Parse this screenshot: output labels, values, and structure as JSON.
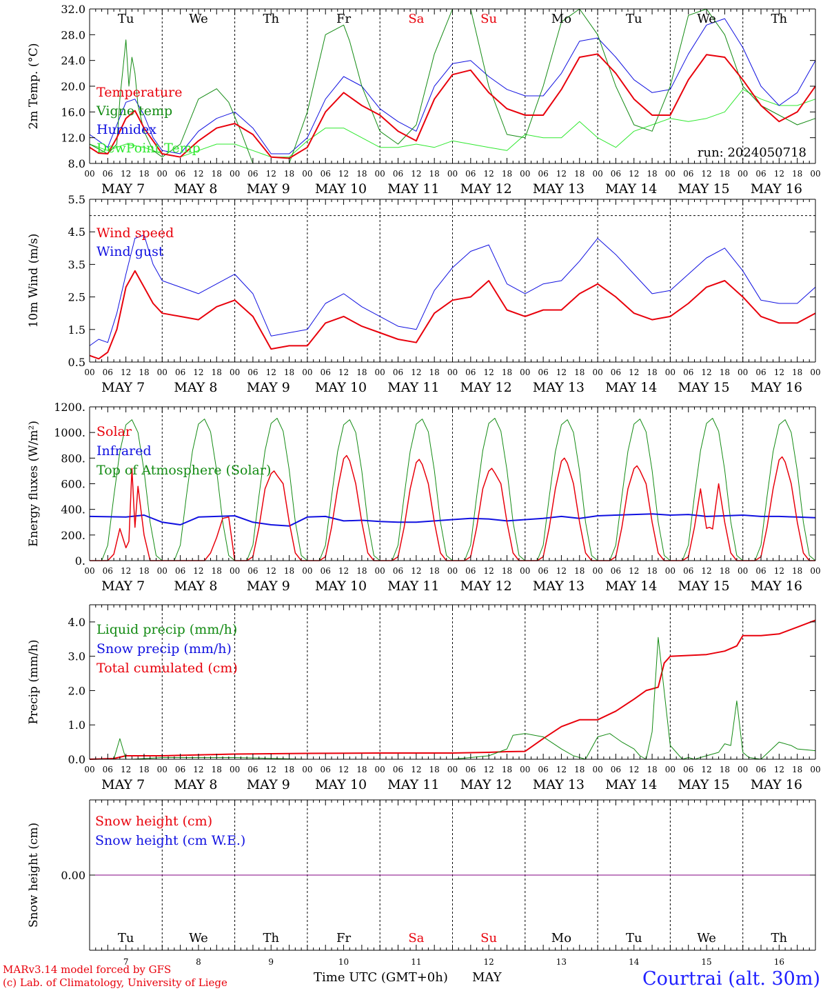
{
  "colors": {
    "red": "#e8000b",
    "green": "#128a12",
    "blue": "#1010e0",
    "lightgreen": "#2ee82e",
    "purple": "#800080",
    "title_blue": "#2020ff"
  },
  "time_axis": {
    "hour_ticks": [
      "00",
      "06",
      "12",
      "18"
    ],
    "last_tick": "00",
    "dates": [
      "MAY  7",
      "MAY  8",
      "MAY  9",
      "MAY 10",
      "MAY 11",
      "MAY 12",
      "MAY 13",
      "MAY 14",
      "MAY 15",
      "MAY 16"
    ],
    "weekdays": [
      {
        "label": "Tu",
        "weekend": false
      },
      {
        "label": "We",
        "weekend": false
      },
      {
        "label": "Th",
        "weekend": false
      },
      {
        "label": "Fr",
        "weekend": false
      },
      {
        "label": "Sa",
        "weekend": true
      },
      {
        "label": "Su",
        "weekend": true
      },
      {
        "label": "Mo",
        "weekend": false
      },
      {
        "label": "Tu",
        "weekend": false
      },
      {
        "label": "We",
        "weekend": false
      },
      {
        "label": "Th",
        "weekend": false
      }
    ],
    "day_numbers": [
      "7",
      "8",
      "9",
      "10",
      "11",
      "12",
      "13",
      "14",
      "15",
      "16"
    ],
    "bottom_label": "Time UTC (GMT+0h)",
    "month": "MAY"
  },
  "footer": {
    "line1": "MARv3.14 model forced by GFS",
    "line2": "(c) Lab. of Climatology, University of Liege",
    "station": "Courtrai (alt. 30m)"
  },
  "chart_data": [
    {
      "id": "temp",
      "type": "line",
      "ylabel": "2m Temp. (°C)",
      "ylim": [
        8,
        32
      ],
      "yticks": [
        "8.0",
        "12.0",
        "16.0",
        "20.0",
        "24.0",
        "28.0",
        "32.0"
      ],
      "run_label": "run: 2024050718",
      "series": [
        {
          "name": "Temperature",
          "color": "red",
          "width": 2,
          "x": [
            0,
            3,
            6,
            9,
            12,
            15,
            18,
            21,
            24,
            30,
            36,
            42,
            48,
            54,
            60,
            66,
            72,
            78,
            84,
            90,
            96,
            102,
            108,
            114,
            120,
            126,
            132,
            138,
            144,
            150,
            156,
            162,
            168,
            174,
            180,
            186,
            192,
            198,
            204,
            210,
            216,
            222,
            228,
            234,
            240
          ],
          "y": [
            10.5,
            9.6,
            9.5,
            12.0,
            15.0,
            16.2,
            13.5,
            11.5,
            9.5,
            9.0,
            11.5,
            13.5,
            14.2,
            12.5,
            9.0,
            8.8,
            10.5,
            16.0,
            19.0,
            17.0,
            15.5,
            13.0,
            11.5,
            18.0,
            21.8,
            22.5,
            19.0,
            16.5,
            15.5,
            15.5,
            19.5,
            24.5,
            25.0,
            22.0,
            18.0,
            15.5,
            15.5,
            21.0,
            24.9,
            24.5,
            21.0,
            17.0,
            14.5,
            16.0,
            20.0
          ]
        },
        {
          "name": "Vigne temp",
          "color": "green",
          "width": 1,
          "x": [
            0,
            6,
            9,
            10,
            12,
            13,
            14,
            15,
            16,
            18,
            21,
            24,
            30,
            36,
            42,
            46,
            50,
            54,
            60,
            66,
            72,
            78,
            84,
            86,
            90,
            96,
            102,
            108,
            114,
            120,
            126,
            132,
            138,
            144,
            150,
            156,
            162,
            168,
            174,
            180,
            186,
            192,
            198,
            204,
            210,
            216,
            222,
            228,
            234,
            240
          ],
          "y": [
            11.0,
            9.5,
            11.0,
            18.0,
            27.2,
            20.0,
            24.5,
            22.0,
            17.0,
            13.0,
            10.0,
            9.0,
            11.0,
            18.0,
            19.6,
            17.5,
            13.0,
            8.0,
            7.5,
            8.0,
            16.0,
            28.0,
            29.5,
            27.0,
            20.0,
            13.0,
            11.0,
            14.0,
            25.0,
            32.0,
            32.0,
            20.0,
            12.5,
            12.0,
            20.0,
            30.0,
            32.0,
            28.0,
            20.0,
            14.0,
            13.0,
            20.0,
            31.0,
            32.0,
            28.0,
            20.0,
            17.0,
            15.5,
            14.0,
            15.0
          ]
        },
        {
          "name": "Humidex",
          "color": "blue",
          "width": 1,
          "x": [
            0,
            6,
            9,
            12,
            15,
            18,
            21,
            24,
            30,
            36,
            42,
            48,
            54,
            60,
            66,
            72,
            78,
            84,
            90,
            96,
            102,
            108,
            114,
            120,
            126,
            132,
            138,
            144,
            150,
            156,
            162,
            168,
            174,
            180,
            186,
            192,
            198,
            204,
            210,
            216,
            222,
            228,
            234,
            240
          ],
          "y": [
            12.5,
            10.5,
            14.0,
            17.5,
            18.0,
            15.5,
            12.0,
            10.0,
            9.5,
            13.0,
            15.0,
            16.0,
            13.5,
            9.5,
            9.5,
            12.0,
            18.0,
            21.5,
            20.0,
            16.5,
            14.5,
            13.0,
            20.0,
            23.5,
            24.0,
            21.5,
            19.5,
            18.5,
            18.5,
            22.0,
            27.0,
            27.5,
            24.5,
            21.0,
            19.0,
            19.5,
            25.0,
            29.5,
            30.5,
            26.0,
            20.0,
            17.0,
            19.0,
            24.0
          ]
        },
        {
          "name": "DewPoint Temp",
          "color": "lightgreen",
          "width": 1,
          "x": [
            0,
            6,
            12,
            18,
            24,
            30,
            36,
            42,
            48,
            54,
            60,
            66,
            72,
            78,
            84,
            90,
            96,
            102,
            108,
            114,
            120,
            126,
            132,
            138,
            144,
            150,
            156,
            162,
            168,
            174,
            180,
            186,
            192,
            198,
            204,
            210,
            216,
            222,
            228,
            234,
            240
          ],
          "y": [
            11.0,
            10.0,
            11.0,
            10.5,
            9.5,
            9.0,
            10.0,
            11.0,
            11.0,
            10.0,
            9.0,
            9.0,
            11.5,
            13.5,
            13.5,
            12.0,
            10.5,
            10.5,
            11.0,
            10.5,
            11.5,
            11.0,
            10.5,
            10.0,
            12.5,
            12.0,
            12.0,
            14.5,
            12.0,
            10.5,
            13.0,
            14.0,
            15.0,
            14.5,
            15.0,
            16.0,
            19.5,
            18.0,
            17.0,
            17.0,
            18.0
          ]
        }
      ]
    },
    {
      "id": "wind",
      "type": "line",
      "ylabel": "10m Wind (m/s)",
      "ylim": [
        0.5,
        5.5
      ],
      "yticks": [
        "0.5",
        "1.5",
        "2.5",
        "3.5",
        "4.5",
        "5.5"
      ],
      "ref_line": 5.0,
      "series": [
        {
          "name": "Wind speed",
          "color": "red",
          "width": 2,
          "x": [
            0,
            3,
            6,
            9,
            12,
            15,
            18,
            21,
            24,
            30,
            36,
            42,
            48,
            54,
            60,
            66,
            72,
            78,
            84,
            90,
            96,
            102,
            108,
            114,
            120,
            126,
            132,
            138,
            144,
            150,
            156,
            162,
            168,
            174,
            180,
            186,
            192,
            198,
            204,
            210,
            216,
            222,
            228,
            234,
            240
          ],
          "y": [
            0.7,
            0.6,
            0.8,
            1.5,
            2.8,
            3.3,
            2.8,
            2.3,
            2.0,
            1.9,
            1.8,
            2.2,
            2.4,
            1.9,
            0.9,
            1.0,
            1.0,
            1.7,
            1.9,
            1.6,
            1.4,
            1.2,
            1.1,
            2.0,
            2.4,
            2.5,
            3.0,
            2.1,
            1.9,
            2.1,
            2.1,
            2.6,
            2.9,
            2.5,
            2.0,
            1.8,
            1.9,
            2.3,
            2.8,
            3.0,
            2.5,
            1.9,
            1.7,
            1.7,
            2.0
          ]
        },
        {
          "name": "Wind gust",
          "color": "blue",
          "width": 1,
          "x": [
            0,
            3,
            6,
            9,
            12,
            15,
            18,
            21,
            24,
            30,
            36,
            42,
            48,
            54,
            60,
            66,
            72,
            78,
            84,
            90,
            96,
            102,
            108,
            114,
            120,
            126,
            132,
            138,
            144,
            150,
            156,
            162,
            168,
            174,
            180,
            186,
            192,
            198,
            204,
            210,
            216,
            222,
            228,
            234,
            240
          ],
          "y": [
            1.0,
            1.2,
            1.1,
            2.0,
            3.2,
            4.3,
            4.4,
            3.5,
            3.0,
            2.8,
            2.6,
            2.9,
            3.2,
            2.6,
            1.3,
            1.4,
            1.5,
            2.3,
            2.6,
            2.2,
            1.9,
            1.6,
            1.5,
            2.7,
            3.4,
            3.9,
            4.1,
            2.9,
            2.6,
            2.9,
            3.0,
            3.6,
            4.3,
            3.8,
            3.2,
            2.6,
            2.7,
            3.2,
            3.7,
            4.0,
            3.3,
            2.4,
            2.3,
            2.3,
            2.8
          ]
        }
      ]
    },
    {
      "id": "energy",
      "type": "line",
      "ylabel": "Energy fluxes (W/m²)",
      "ylim": [
        0,
        1200
      ],
      "yticks": [
        "0.",
        "200.",
        "400.",
        "600.",
        "800.",
        "1000.",
        "1200."
      ],
      "series": [
        {
          "name": "Solar",
          "color": "red",
          "width": 1.5,
          "x": [
            0,
            4,
            6,
            8,
            10,
            12,
            13,
            14,
            15,
            16,
            18,
            20,
            24,
            28,
            30,
            32,
            34,
            36,
            38,
            40,
            42,
            44,
            46,
            48,
            52,
            54,
            56
          ],
          "y": [
            0,
            0,
            0,
            50,
            250,
            100,
            150,
            720,
            260,
            580,
            200,
            0,
            0,
            0,
            0,
            0,
            0,
            0,
            0,
            60,
            180,
            330,
            340,
            300,
            120,
            10,
            0
          ]
        },
        {
          "name": "Infrared",
          "color": "blue",
          "width": 2,
          "x": [
            0,
            12,
            18,
            24,
            30,
            36,
            42,
            48,
            54,
            60,
            66,
            72,
            78,
            84,
            90,
            96,
            102,
            108,
            114,
            120,
            126,
            132,
            138,
            144,
            150,
            156,
            162,
            168,
            174,
            180,
            186,
            192,
            198,
            204,
            210,
            216,
            222,
            228,
            234,
            240
          ],
          "y": [
            345,
            340,
            355,
            300,
            280,
            340,
            345,
            350,
            300,
            280,
            270,
            340,
            345,
            310,
            315,
            305,
            300,
            300,
            310,
            320,
            330,
            325,
            310,
            320,
            330,
            345,
            330,
            350,
            355,
            360,
            365,
            355,
            360,
            345,
            350,
            355,
            345,
            345,
            340,
            335
          ]
        },
        {
          "name": "Top of Atmosphere (Solar)",
          "color": "green",
          "width": 1,
          "x": [
            0,
            4,
            6,
            8,
            10,
            12,
            14,
            16,
            18,
            20,
            22,
            24
          ],
          "y": [
            0,
            0,
            120,
            500,
            850,
            1060,
            1100,
            1000,
            700,
            300,
            40,
            0
          ]
        }
      ]
    },
    {
      "id": "precip",
      "type": "line",
      "ylabel": "Precip (mm/h)",
      "ylim": [
        0,
        4.5
      ],
      "yticks": [
        "0.0",
        "1.0",
        "2.0",
        "3.0",
        "4.0"
      ],
      "series": [
        {
          "name": "Liquid precip (mm/h)",
          "color": "green",
          "width": 1,
          "x": [
            0,
            8,
            10,
            12,
            14,
            24,
            48,
            72,
            96,
            120,
            132,
            138,
            140,
            144,
            150,
            156,
            160,
            164,
            168,
            172,
            176,
            180,
            182,
            184,
            186,
            188,
            192,
            196,
            198,
            200,
            204,
            208,
            210,
            212,
            214,
            216,
            218,
            222,
            228,
            232,
            234,
            240
          ],
          "y": [
            0,
            0,
            0.6,
            0,
            0,
            0.05,
            0.05,
            0,
            0,
            0,
            0.1,
            0.3,
            0.7,
            0.75,
            0.65,
            0.3,
            0.1,
            0,
            0.65,
            0.75,
            0.5,
            0.3,
            0.1,
            0,
            0.8,
            3.55,
            0.4,
            0,
            0.05,
            0,
            0.1,
            0.2,
            0.45,
            0.4,
            1.7,
            0.2,
            0.05,
            0,
            0.5,
            0.4,
            0.3,
            0.25
          ]
        },
        {
          "name": "Snow precip (mm/h)",
          "color": "blue",
          "width": 1,
          "x": [
            0,
            240
          ],
          "y": [
            0,
            0
          ]
        },
        {
          "name": "Total cumulated (cm)",
          "color": "red",
          "width": 2,
          "x": [
            0,
            8,
            12,
            24,
            48,
            72,
            96,
            120,
            132,
            138,
            144,
            150,
            156,
            162,
            168,
            174,
            180,
            184,
            186,
            188,
            190,
            192,
            204,
            210,
            214,
            216,
            222,
            228,
            234,
            240
          ],
          "y": [
            0,
            0.02,
            0.1,
            0.1,
            0.15,
            0.17,
            0.18,
            0.18,
            0.2,
            0.22,
            0.23,
            0.6,
            0.95,
            1.15,
            1.15,
            1.4,
            1.75,
            2.0,
            2.05,
            2.1,
            2.8,
            3.0,
            3.05,
            3.15,
            3.3,
            3.6,
            3.6,
            3.65,
            3.85,
            4.05
          ]
        }
      ]
    },
    {
      "id": "snow",
      "type": "line",
      "ylabel": "Snow height (cm)",
      "ylim": [
        -1,
        1
      ],
      "yticks": [
        "0.00"
      ],
      "series": [
        {
          "name": "Snow height (cm)",
          "color": "red",
          "width": 1,
          "x": [
            0,
            240
          ],
          "y": [
            0,
            0
          ]
        },
        {
          "name": "Snow height (cm W.E.)",
          "color": "blue",
          "width": 1,
          "x": [
            0,
            240
          ],
          "y": [
            0,
            0
          ]
        }
      ]
    }
  ]
}
